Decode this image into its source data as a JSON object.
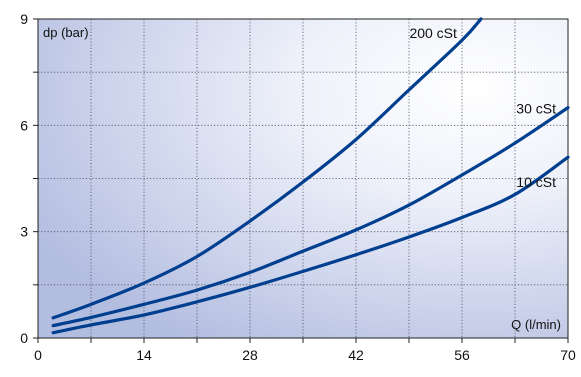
{
  "chart_data": {
    "type": "line",
    "xlabel": "Q (l/min)",
    "ylabel": "dp (bar)",
    "xlim": [
      0,
      70
    ],
    "ylim": [
      0,
      9
    ],
    "x_ticks": [
      "0",
      "14",
      "28",
      "42",
      "56",
      "70"
    ],
    "y_ticks": [
      "0",
      "3",
      "6",
      "9"
    ],
    "grid": true,
    "series": [
      {
        "name": "10 cSt",
        "color": "#003f8f",
        "x": [
          2,
          7,
          14,
          21,
          28,
          35,
          42,
          49,
          56,
          63,
          70
        ],
        "y": [
          0.15,
          0.37,
          0.65,
          1.02,
          1.43,
          1.88,
          2.35,
          2.85,
          3.4,
          4.05,
          5.1
        ]
      },
      {
        "name": "30 cSt",
        "color": "#003f8f",
        "x": [
          2,
          7,
          14,
          21,
          28,
          35,
          42,
          49,
          56,
          63,
          70
        ],
        "y": [
          0.35,
          0.58,
          0.95,
          1.35,
          1.85,
          2.45,
          3.05,
          3.75,
          4.6,
          5.5,
          6.5
        ]
      },
      {
        "name": "200 cSt",
        "color": "#003f8f",
        "x": [
          2,
          7,
          14,
          21,
          28,
          35,
          42,
          49,
          56,
          58.5
        ],
        "y": [
          0.57,
          0.95,
          1.55,
          2.3,
          3.3,
          4.4,
          5.6,
          7.0,
          8.4,
          9.0
        ]
      }
    ]
  }
}
